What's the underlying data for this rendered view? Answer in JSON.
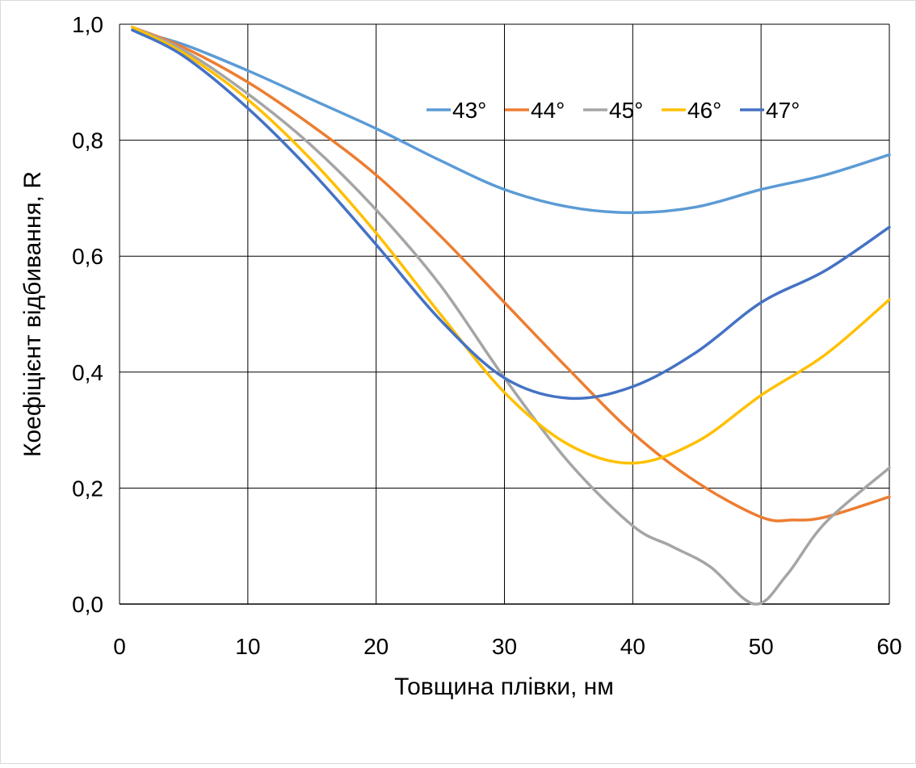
{
  "chart_data": {
    "type": "line",
    "title": "",
    "xlabel": "Товщина плівки, нм",
    "ylabel": "Коефіцієнт відбивання, R",
    "xlim": [
      0,
      60
    ],
    "ylim": [
      0,
      1
    ],
    "xticks": [
      0,
      10,
      20,
      30,
      40,
      50,
      60
    ],
    "xtick_labels": [
      "0",
      "10",
      "20",
      "30",
      "40",
      "50",
      "60"
    ],
    "yticks": [
      0,
      0.2,
      0.4,
      0.6,
      0.8,
      1.0
    ],
    "ytick_labels": [
      "0,0",
      "0,2",
      "0,4",
      "0,6",
      "0,8",
      "1,0"
    ],
    "grid": true,
    "legend_position": "top-right",
    "series": [
      {
        "name": "43°",
        "color": "#5B9BD5",
        "x": [
          1,
          5,
          10,
          15,
          20,
          25,
          30,
          35,
          40,
          45,
          50,
          55,
          60
        ],
        "y": [
          0.99,
          0.965,
          0.92,
          0.87,
          0.82,
          0.765,
          0.715,
          0.685,
          0.675,
          0.685,
          0.715,
          0.74,
          0.775
        ]
      },
      {
        "name": "44°",
        "color": "#ED7D31",
        "x": [
          1,
          5,
          10,
          15,
          20,
          25,
          30,
          35,
          40,
          45,
          50,
          52.5,
          55,
          60
        ],
        "y": [
          0.995,
          0.96,
          0.9,
          0.825,
          0.74,
          0.635,
          0.52,
          0.405,
          0.295,
          0.21,
          0.15,
          0.145,
          0.15,
          0.185
        ]
      },
      {
        "name": "45°",
        "color": "#A5A5A5",
        "x": [
          1,
          5,
          10,
          15,
          20,
          25,
          30,
          35,
          40,
          43,
          46,
          49.5,
          52,
          55,
          60
        ],
        "y": [
          0.995,
          0.955,
          0.88,
          0.79,
          0.68,
          0.55,
          0.39,
          0.245,
          0.135,
          0.1,
          0.065,
          0.0,
          0.05,
          0.14,
          0.235
        ]
      },
      {
        "name": "46°",
        "color": "#FFC000",
        "x": [
          1,
          5,
          10,
          15,
          20,
          25,
          30,
          35,
          40,
          45,
          50,
          55,
          60
        ],
        "y": [
          0.995,
          0.95,
          0.87,
          0.765,
          0.64,
          0.5,
          0.365,
          0.275,
          0.243,
          0.28,
          0.36,
          0.43,
          0.525
        ]
      },
      {
        "name": "47°",
        "color": "#4472C4",
        "x": [
          1,
          5,
          10,
          15,
          20,
          25,
          30,
          35,
          40,
          45,
          50,
          55,
          60
        ],
        "y": [
          0.99,
          0.945,
          0.855,
          0.745,
          0.62,
          0.49,
          0.39,
          0.355,
          0.375,
          0.435,
          0.52,
          0.575,
          0.65
        ]
      }
    ]
  }
}
